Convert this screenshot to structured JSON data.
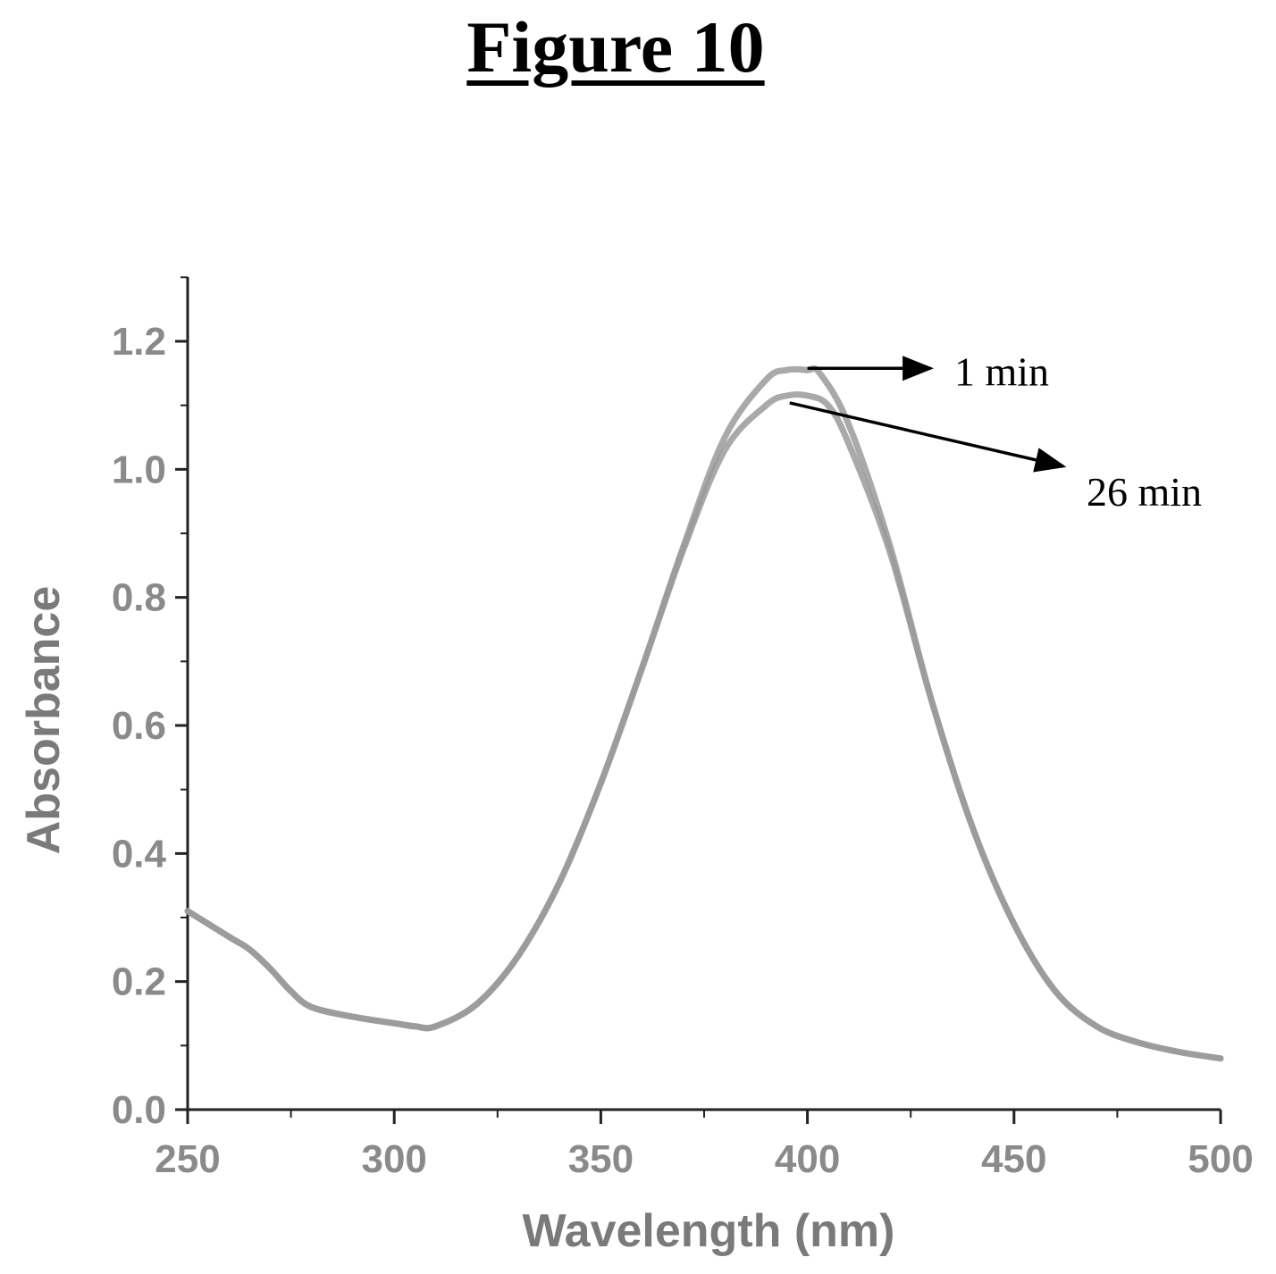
{
  "figure_title": "Figure 10",
  "chart_data": {
    "type": "line",
    "title": "",
    "xlabel": "Wavelength (nm)",
    "ylabel": "Absorbance",
    "xlim": [
      250,
      500
    ],
    "ylim": [
      0,
      1.3
    ],
    "xticks": [
      250,
      300,
      350,
      400,
      450,
      500
    ],
    "xtick_labels": [
      "250",
      "300",
      "350",
      "400",
      "450",
      "500"
    ],
    "yticks": [
      0.0,
      0.2,
      0.4,
      0.6,
      0.8,
      1.0,
      1.2
    ],
    "ytick_labels": [
      "0.0",
      "0.2",
      "0.4",
      "0.6",
      "0.8",
      "1.0",
      "1.2"
    ],
    "grid": false,
    "line_color": "#9a9a9a",
    "series": [
      {
        "name": "1 min",
        "x": [
          250,
          260,
          265,
          270,
          275,
          280,
          290,
          300,
          305,
          310,
          320,
          330,
          340,
          350,
          360,
          370,
          380,
          390,
          395,
          400,
          403,
          410,
          420,
          430,
          440,
          450,
          460,
          470,
          480,
          490,
          500
        ],
        "y": [
          0.31,
          0.27,
          0.25,
          0.22,
          0.185,
          0.16,
          0.145,
          0.135,
          0.13,
          0.13,
          0.165,
          0.24,
          0.355,
          0.51,
          0.69,
          0.88,
          1.05,
          1.14,
          1.155,
          1.155,
          1.15,
          1.07,
          0.88,
          0.64,
          0.44,
          0.29,
          0.185,
          0.13,
          0.105,
          0.09,
          0.08
        ]
      },
      {
        "name": "26 min",
        "x": [
          250,
          260,
          265,
          270,
          275,
          280,
          290,
          300,
          305,
          310,
          320,
          330,
          340,
          350,
          360,
          370,
          380,
          390,
          395,
          400,
          405,
          410,
          420,
          430,
          440,
          450,
          460,
          470,
          480,
          490,
          500
        ],
        "y": [
          0.31,
          0.27,
          0.25,
          0.22,
          0.185,
          0.16,
          0.145,
          0.135,
          0.13,
          0.13,
          0.165,
          0.24,
          0.355,
          0.51,
          0.69,
          0.875,
          1.03,
          1.1,
          1.115,
          1.115,
          1.1,
          1.04,
          0.87,
          0.64,
          0.44,
          0.29,
          0.185,
          0.13,
          0.105,
          0.09,
          0.08
        ]
      }
    ],
    "annotations": [
      {
        "text": "1 min",
        "points_to": {
          "x": 400,
          "y": 1.155
        }
      },
      {
        "text": "26 min",
        "points_to": {
          "x": 397,
          "y": 1.115
        }
      }
    ]
  }
}
